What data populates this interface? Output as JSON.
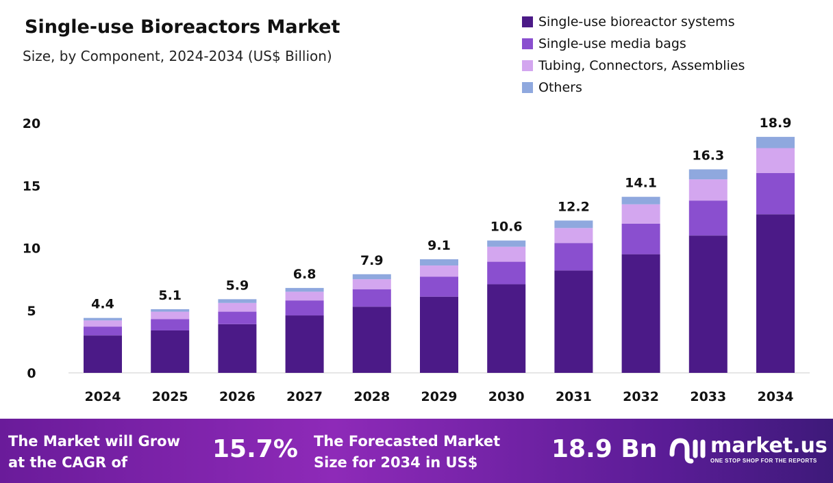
{
  "title": "Single-use Bioreactors Market",
  "subtitle": "Size, by Component, 2024-2034 (US$ Billion)",
  "chart_data": {
    "type": "bar",
    "stacked": true,
    "categories": [
      "2024",
      "2025",
      "2026",
      "2027",
      "2028",
      "2029",
      "2030",
      "2031",
      "2032",
      "2033",
      "2034"
    ],
    "series": [
      {
        "name": "Single-use bioreactor systems",
        "color": "#4b1a87",
        "values": [
          3.0,
          3.4,
          3.9,
          4.6,
          5.3,
          6.1,
          7.1,
          8.2,
          9.5,
          11.0,
          12.7
        ]
      },
      {
        "name": "Single-use media bags",
        "color": "#8a4fcf",
        "values": [
          0.7,
          0.9,
          1.0,
          1.2,
          1.4,
          1.6,
          1.8,
          2.2,
          2.45,
          2.8,
          3.3
        ]
      },
      {
        "name": "Tubing, Connectors, Assemblies",
        "color": "#d3a6ef",
        "values": [
          0.5,
          0.6,
          0.7,
          0.7,
          0.8,
          0.9,
          1.2,
          1.2,
          1.55,
          1.7,
          2.0
        ]
      },
      {
        "name": "Others",
        "color": "#8fa8de",
        "values": [
          0.2,
          0.2,
          0.3,
          0.3,
          0.4,
          0.5,
          0.5,
          0.6,
          0.6,
          0.8,
          0.9
        ]
      }
    ],
    "totals": [
      "4.4",
      "5.1",
      "5.9",
      "6.8",
      "7.9",
      "9.1",
      "10.6",
      "12.2",
      "14.1",
      "16.3",
      "18.9"
    ],
    "ylim": [
      0,
      20
    ],
    "yticks": [
      "0",
      "5",
      "10",
      "15",
      "20"
    ],
    "grid": false,
    "legend": "top-right"
  },
  "footer": {
    "cagr_text_1": "The Market will Grow",
    "cagr_text_2": "at the CAGR of",
    "cagr_value": "15.7%",
    "forecast_text_1": "The Forecasted Market",
    "forecast_text_2": "Size for 2034 in US$",
    "forecast_value": "18.9 Bn",
    "logo_name": "market.us",
    "logo_tagline": "ONE STOP SHOP FOR THE REPORTS"
  }
}
